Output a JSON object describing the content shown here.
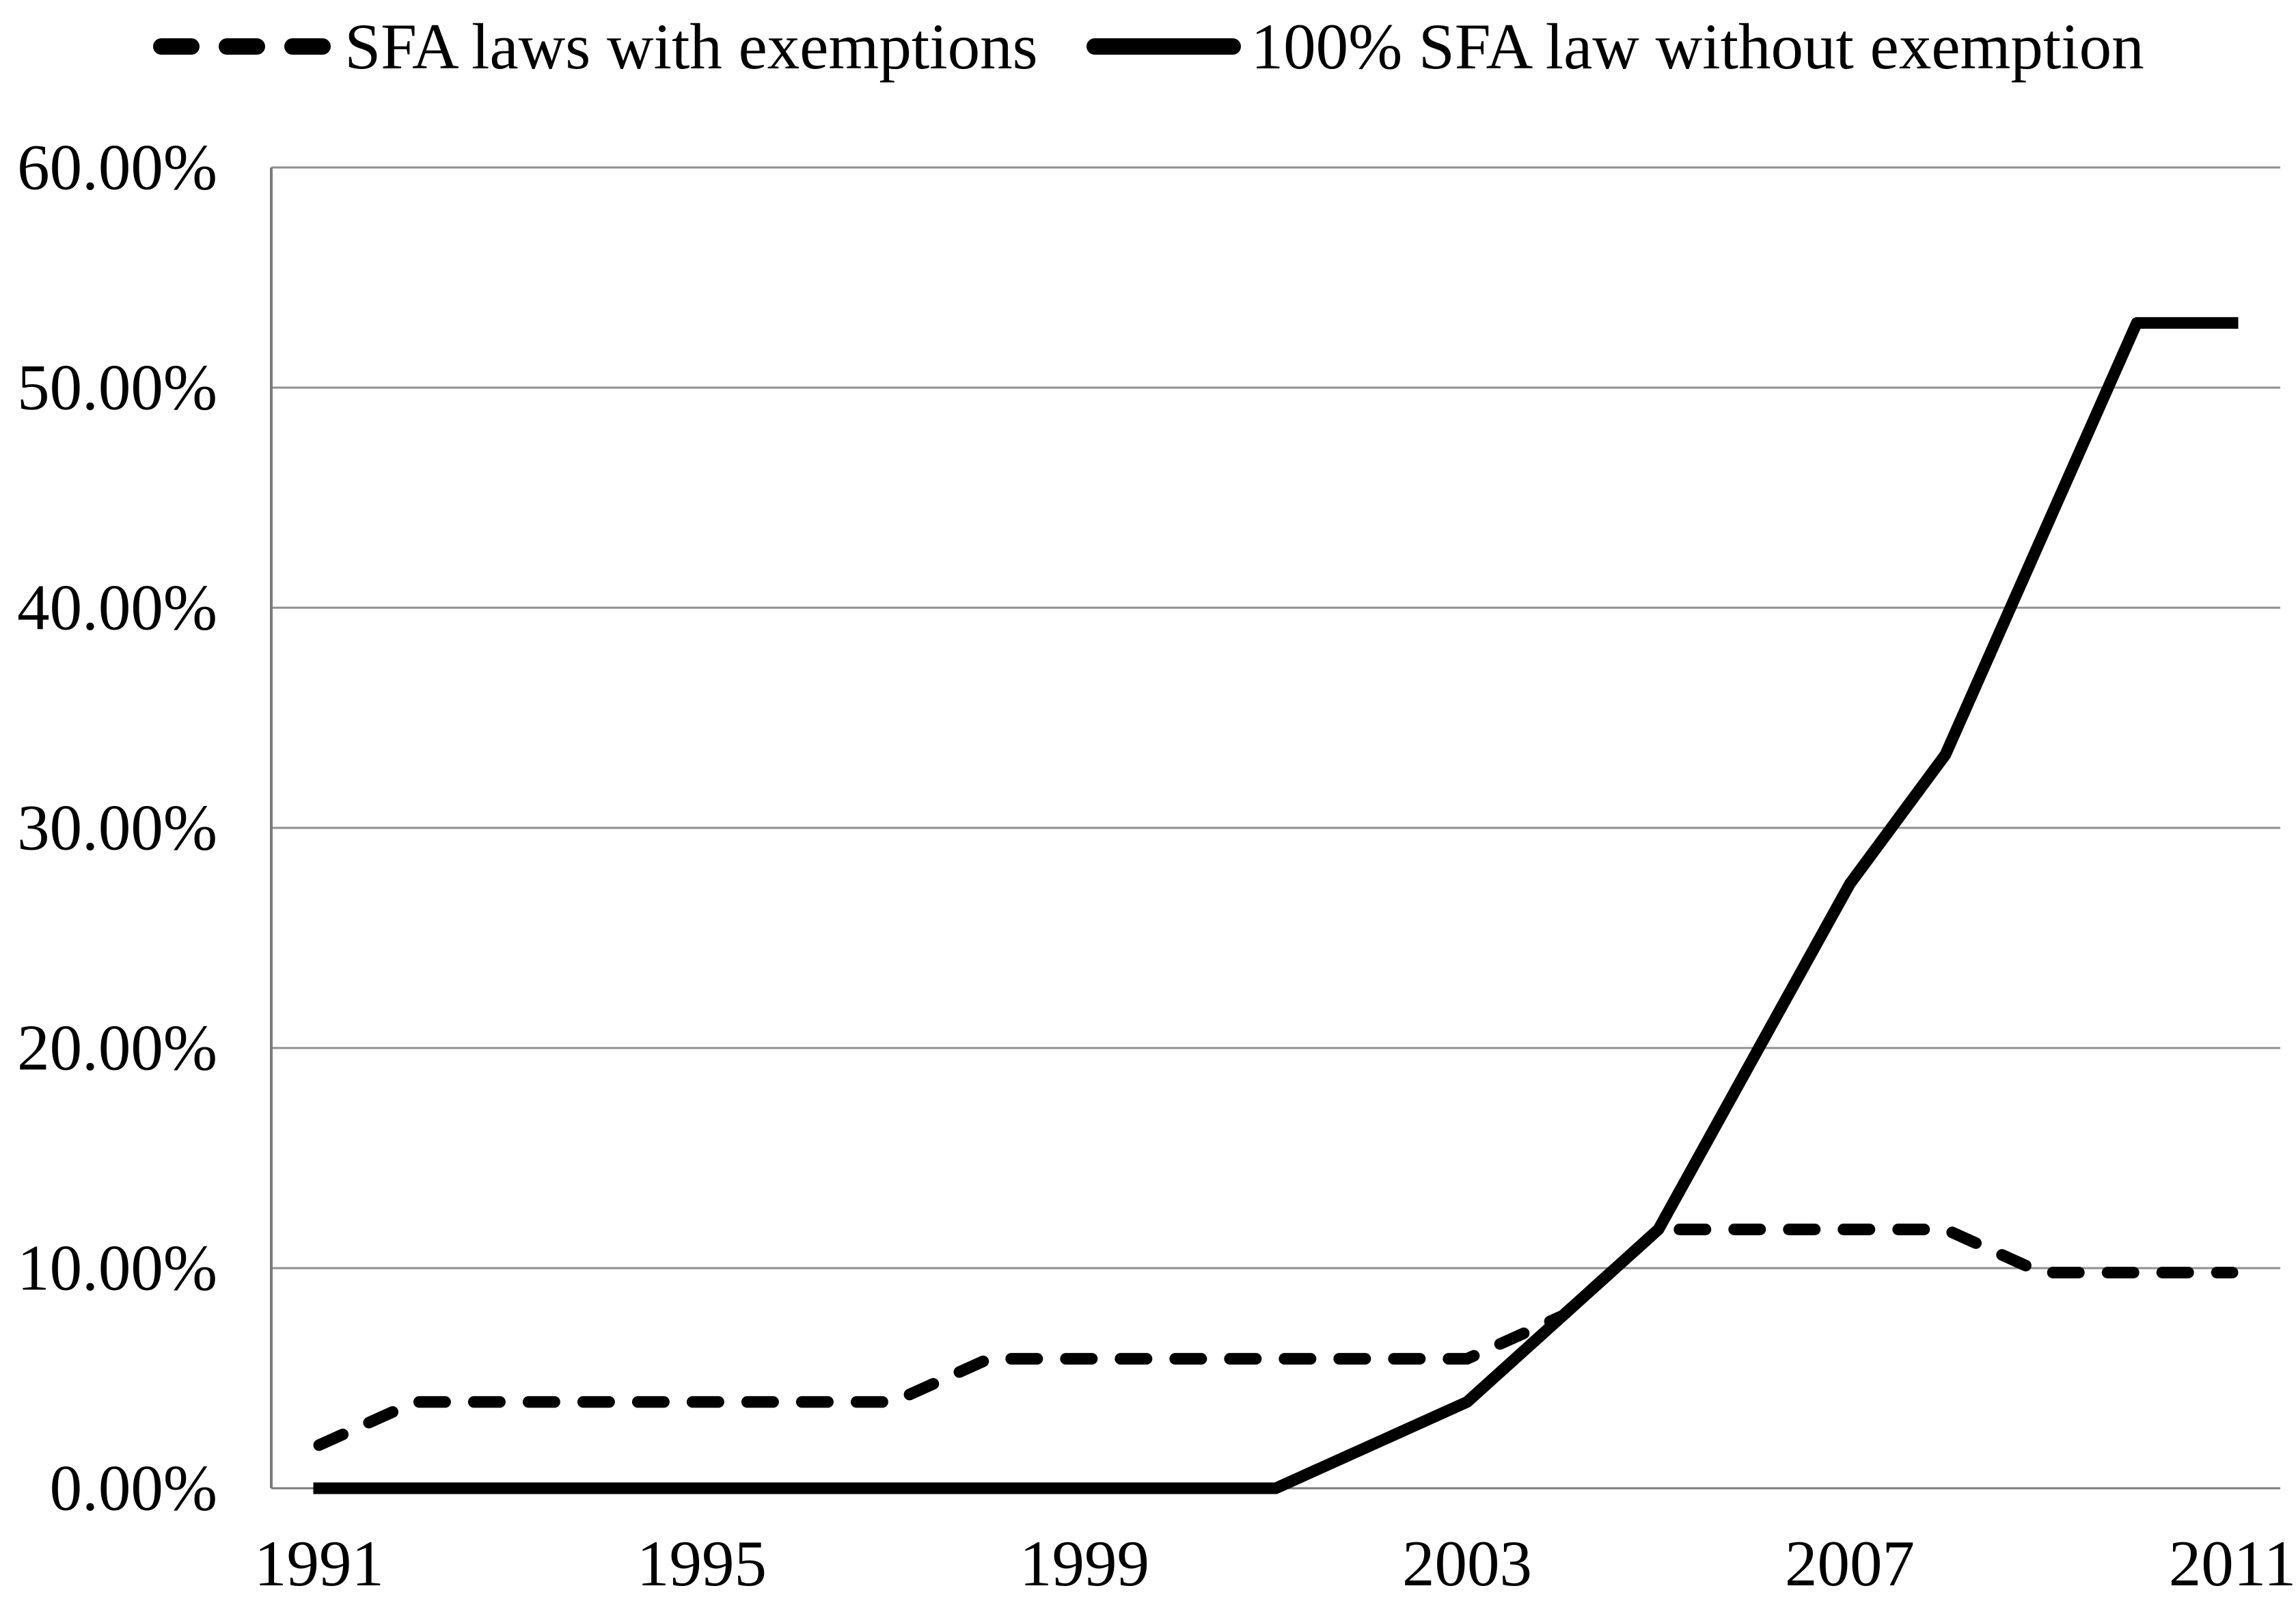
{
  "chart_data": {
    "type": "line",
    "title": "",
    "xlabel": "",
    "ylabel": "",
    "x": [
      1991,
      1992,
      1993,
      1994,
      1995,
      1996,
      1997,
      1998,
      1999,
      2000,
      2001,
      2002,
      2003,
      2004,
      2005,
      2006,
      2007,
      2008,
      2009,
      2010,
      2011
    ],
    "series": [
      {
        "name": "SFA laws with exemptions",
        "style": "dashed",
        "color": "#000000",
        "values": [
          1.96,
          3.92,
          3.92,
          3.92,
          3.92,
          3.92,
          3.92,
          5.88,
          5.88,
          5.88,
          5.88,
          5.88,
          5.88,
          7.84,
          11.76,
          11.76,
          11.76,
          11.76,
          9.8,
          9.8,
          9.8
        ]
      },
      {
        "name": "100% SFA law without exemption",
        "style": "solid",
        "color": "#000000",
        "values": [
          0.0,
          0.0,
          0.0,
          0.0,
          0.0,
          0.0,
          0.0,
          0.0,
          0.0,
          0.0,
          0.0,
          1.96,
          3.92,
          7.84,
          11.76,
          19.61,
          27.45,
          33.33,
          43.14,
          52.94,
          52.94
        ]
      }
    ],
    "ylim": [
      0,
      60
    ],
    "y_tick_labels": [
      "0.00%",
      "10.00%",
      "20.00%",
      "30.00%",
      "40.00%",
      "50.00%",
      "60.00%"
    ],
    "y_tick_values": [
      0,
      10,
      20,
      30,
      40,
      50,
      60
    ],
    "x_tick_labels": [
      "1991",
      "1995",
      "1999",
      "2003",
      "2007",
      "2011"
    ],
    "x_tick_values": [
      1991,
      1995,
      1999,
      2003,
      2007,
      2011
    ],
    "grid": "horizontal",
    "legend_position": "top",
    "colors": {
      "line": "#000000",
      "grid": "#8f8f8f",
      "axis": "#7a7a7a",
      "background": "#ffffff",
      "text": "#000000"
    }
  }
}
